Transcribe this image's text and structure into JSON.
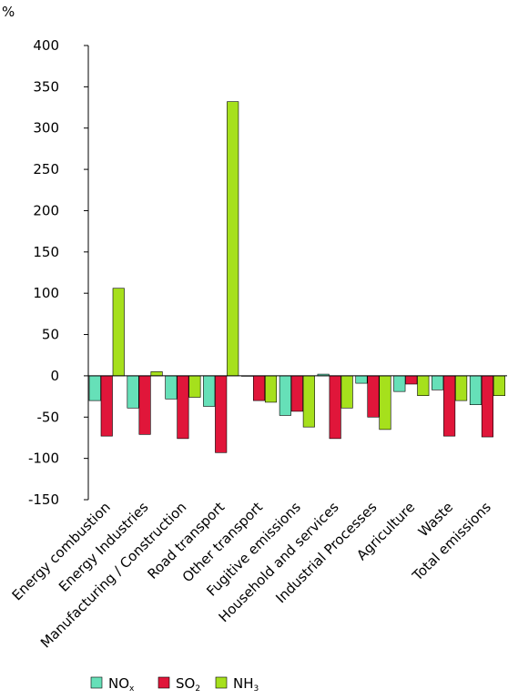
{
  "chart_data": {
    "type": "bar",
    "title": "",
    "xlabel": "",
    "ylabel": "%",
    "ylim": [
      -150,
      400
    ],
    "yticks": [
      400,
      350,
      300,
      250,
      200,
      150,
      100,
      50,
      0,
      -50,
      -100,
      -150
    ],
    "grid": false,
    "legend_position": "bottom",
    "categories": [
      "Energy combustion",
      "Energy Industries",
      "Manufacturing / Construction",
      "Road transport",
      "Other transport",
      "Fugitive emissions",
      "Household and services",
      "Industrial Processes",
      "Agriculture",
      "Waste",
      "Total emissions"
    ],
    "series": [
      {
        "name": "NOx",
        "base": "NO",
        "sub": "x",
        "color": "#66e0b8",
        "values": [
          -30,
          -39,
          -28,
          -37,
          0,
          -48,
          2,
          -9,
          -19,
          -17,
          -35
        ]
      },
      {
        "name": "SO2",
        "base": "SO",
        "sub": "2",
        "color": "#e0163a",
        "values": [
          -73,
          -71,
          -76,
          -93,
          -30,
          -43,
          -76,
          -50,
          -10,
          -73,
          -74
        ]
      },
      {
        "name": "NH3",
        "base": "NH",
        "sub": "3",
        "color": "#a6e01c",
        "values": [
          106,
          5,
          -26,
          332,
          -32,
          -62,
          -39,
          -65,
          -24,
          -30,
          -24
        ]
      }
    ]
  }
}
